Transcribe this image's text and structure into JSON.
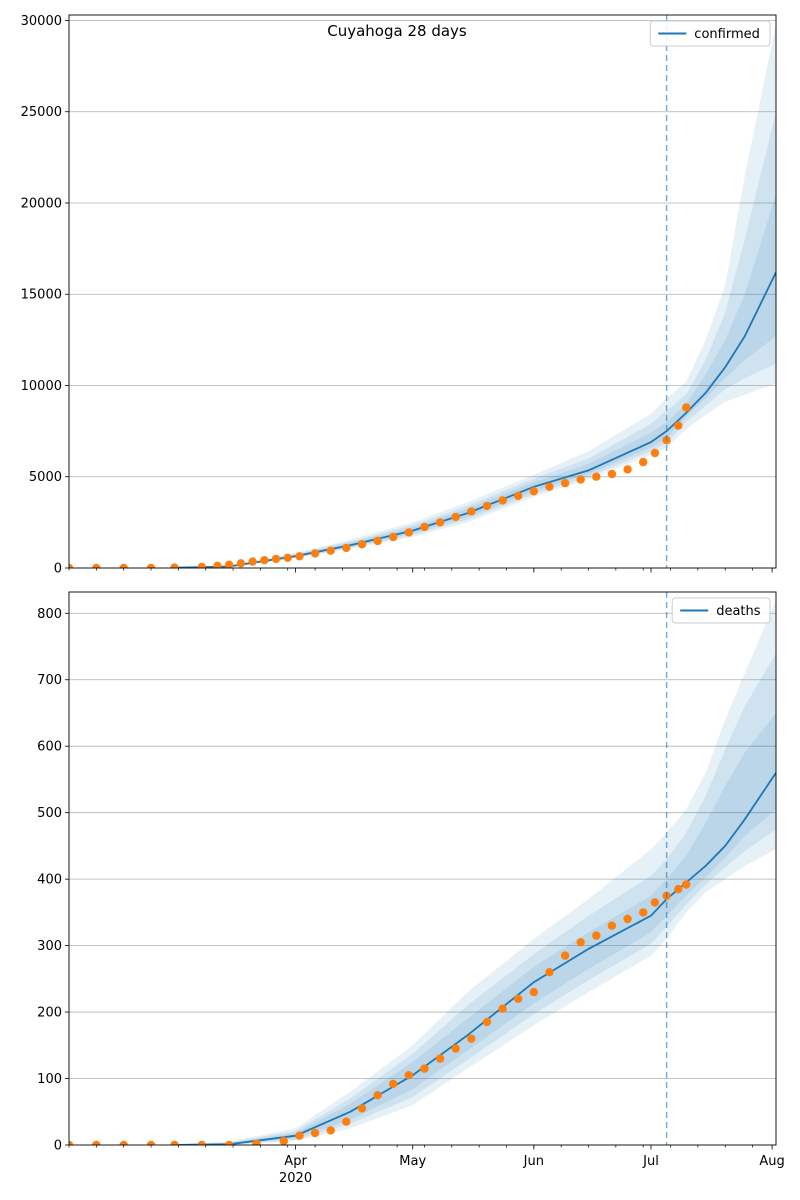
{
  "figure_title": "Cuyahoga 28 days",
  "colors": {
    "forecast_line": "#1f77b4",
    "band": "#1f77b4",
    "observed_points": "#ff7f0e",
    "grid": "#b0b0b0",
    "cutoff_line": "#1f77b4"
  },
  "chart_data": [
    {
      "type": "line",
      "name": "confirmed-panel",
      "legend": [
        "confirmed"
      ],
      "legend_placement": "top-right",
      "title": "Cuyahoga 28 days",
      "x_axis": {
        "type": "date",
        "range": [
          "2020-02-03",
          "2020-08-02"
        ],
        "major_ticks": [
          "2020-04-01",
          "2020-05-01",
          "2020-06-01",
          "2020-07-01",
          "2020-08-01"
        ],
        "major_tick_labels": [
          "Apr",
          "May",
          "Jun",
          "Jul",
          "Aug"
        ],
        "year_label": "2020",
        "tick_labels_shown": false
      },
      "y_axis": {
        "range": [
          0,
          30300
        ],
        "ticks": [
          0,
          5000,
          10000,
          15000,
          20000,
          25000,
          30000
        ]
      },
      "grid": "horizontal",
      "forecast_start": "2020-07-05",
      "forecast": {
        "name": "confirmed",
        "x": [
          "2020-03-01",
          "2020-03-15",
          "2020-04-01",
          "2020-04-15",
          "2020-05-01",
          "2020-05-15",
          "2020-06-01",
          "2020-06-15",
          "2020-07-01",
          "2020-07-05",
          "2020-07-10",
          "2020-07-15",
          "2020-07-20",
          "2020-07-25",
          "2020-08-02"
        ],
        "median": [
          15,
          80,
          650,
          1250,
          2050,
          3000,
          4450,
          5350,
          6900,
          7500,
          8500,
          9600,
          11000,
          12700,
          16200
        ],
        "bands": [
          {
            "lower": [
              5,
              40,
              530,
              1050,
              1700,
              2500,
              3900,
              4850,
              6200,
              6600,
              7600,
              8400,
              9100,
              9500,
              10100
            ],
            "upper": [
              30,
              140,
              820,
              1550,
              2500,
              3600,
              5100,
              6400,
              8450,
              9300,
              10200,
              12500,
              15500,
              21500,
              29800
            ]
          },
          {
            "lower": [
              8,
              50,
              560,
              1100,
              1800,
              2650,
              4050,
              5000,
              6400,
              6850,
              8000,
              8900,
              9800,
              10400,
              11200
            ],
            "upper": [
              25,
              120,
              770,
              1450,
              2350,
              3400,
              4900,
              6000,
              7900,
              8600,
              9500,
              11400,
              14000,
              18000,
              25000
            ]
          },
          {
            "lower": [
              10,
              60,
              590,
              1150,
              1900,
              2800,
              4200,
              5150,
              6600,
              7100,
              8300,
              9300,
              10400,
              11400,
              12700
            ],
            "upper": [
              22,
              105,
              720,
              1380,
              2220,
              3250,
              4700,
              5700,
              7400,
              8000,
              9000,
              10600,
              12500,
              15000,
              20500
            ]
          }
        ]
      },
      "observed": {
        "name": "observed",
        "x": [
          "2020-02-03",
          "2020-02-10",
          "2020-02-17",
          "2020-02-24",
          "2020-03-01",
          "2020-03-08",
          "2020-03-12",
          "2020-03-15",
          "2020-03-18",
          "2020-03-21",
          "2020-03-24",
          "2020-03-27",
          "2020-03-30",
          "2020-04-02",
          "2020-04-06",
          "2020-04-10",
          "2020-04-14",
          "2020-04-18",
          "2020-04-22",
          "2020-04-26",
          "2020-04-30",
          "2020-05-04",
          "2020-05-08",
          "2020-05-12",
          "2020-05-16",
          "2020-05-20",
          "2020-05-24",
          "2020-05-28",
          "2020-06-01",
          "2020-06-05",
          "2020-06-09",
          "2020-06-13",
          "2020-06-17",
          "2020-06-21",
          "2020-06-25",
          "2020-06-29",
          "2020-07-02",
          "2020-07-05",
          "2020-07-08",
          "2020-07-10"
        ],
        "y": [
          0,
          0,
          0,
          0,
          20,
          60,
          120,
          180,
          260,
          350,
          430,
          500,
          560,
          640,
          800,
          950,
          1100,
          1300,
          1480,
          1700,
          1950,
          2250,
          2500,
          2800,
          3100,
          3400,
          3700,
          3950,
          4200,
          4450,
          4650,
          4850,
          5000,
          5150,
          5400,
          5800,
          6300,
          7000,
          7800,
          8800
        ]
      }
    },
    {
      "type": "line",
      "name": "deaths-panel",
      "legend": [
        "deaths"
      ],
      "legend_placement": "top-right",
      "title": "",
      "x_axis": {
        "type": "date",
        "range": [
          "2020-02-03",
          "2020-08-02"
        ],
        "major_ticks": [
          "2020-04-01",
          "2020-05-01",
          "2020-06-01",
          "2020-07-01",
          "2020-08-01"
        ],
        "major_tick_labels": [
          "Apr",
          "May",
          "Jun",
          "Jul",
          "Aug"
        ],
        "year_label": "2020",
        "tick_labels_shown": true
      },
      "y_axis": {
        "range": [
          0,
          832
        ],
        "ticks": [
          0,
          100,
          200,
          300,
          400,
          500,
          600,
          700,
          800
        ]
      },
      "grid": "horizontal",
      "forecast_start": "2020-07-05",
      "forecast": {
        "name": "deaths",
        "x": [
          "2020-03-01",
          "2020-03-15",
          "2020-04-01",
          "2020-04-15",
          "2020-05-01",
          "2020-05-15",
          "2020-06-01",
          "2020-06-15",
          "2020-07-01",
          "2020-07-05",
          "2020-07-10",
          "2020-07-15",
          "2020-07-20",
          "2020-07-25",
          "2020-08-02"
        ],
        "median": [
          0,
          1,
          14,
          50,
          105,
          165,
          245,
          295,
          345,
          370,
          395,
          420,
          450,
          490,
          560
        ],
        "bands": [
          {
            "lower": [
              0,
              0,
              6,
              25,
              60,
              115,
              180,
              230,
              285,
              310,
              350,
              380,
              400,
              420,
              445
            ],
            "upper": [
              2,
              5,
              25,
              80,
              150,
              230,
              310,
              370,
              445,
              470,
              505,
              560,
              640,
              710,
              820
            ]
          },
          {
            "lower": [
              0,
              0,
              8,
              32,
              72,
              128,
              197,
              248,
              303,
              328,
              362,
              392,
              418,
              442,
              475
            ],
            "upper": [
              1,
              4,
              21,
              70,
              137,
              210,
              287,
              345,
              405,
              430,
              470,
              525,
              595,
              660,
              740
            ]
          },
          {
            "lower": [
              0,
              1,
              10,
              38,
              84,
              142,
              213,
              265,
              320,
              345,
              375,
              403,
              432,
              465,
              505
            ],
            "upper": [
              1,
              3,
              18,
              62,
              125,
              190,
              268,
              320,
              375,
              400,
              435,
              485,
              540,
              590,
              650
            ]
          }
        ]
      },
      "observed": {
        "name": "observed",
        "x": [
          "2020-02-03",
          "2020-02-10",
          "2020-02-17",
          "2020-02-24",
          "2020-03-01",
          "2020-03-08",
          "2020-03-15",
          "2020-03-22",
          "2020-03-29",
          "2020-04-02",
          "2020-04-06",
          "2020-04-10",
          "2020-04-14",
          "2020-04-18",
          "2020-04-22",
          "2020-04-26",
          "2020-04-30",
          "2020-05-04",
          "2020-05-08",
          "2020-05-12",
          "2020-05-16",
          "2020-05-20",
          "2020-05-24",
          "2020-05-28",
          "2020-06-01",
          "2020-06-05",
          "2020-06-09",
          "2020-06-13",
          "2020-06-17",
          "2020-06-21",
          "2020-06-25",
          "2020-06-29",
          "2020-07-02",
          "2020-07-05",
          "2020-07-08",
          "2020-07-10"
        ],
        "y": [
          0,
          0,
          0,
          0,
          0,
          0,
          0,
          2,
          6,
          14,
          18,
          22,
          35,
          55,
          75,
          92,
          105,
          115,
          130,
          145,
          160,
          185,
          205,
          220,
          230,
          260,
          285,
          305,
          315,
          330,
          340,
          350,
          365,
          375,
          385,
          392
        ]
      }
    }
  ]
}
